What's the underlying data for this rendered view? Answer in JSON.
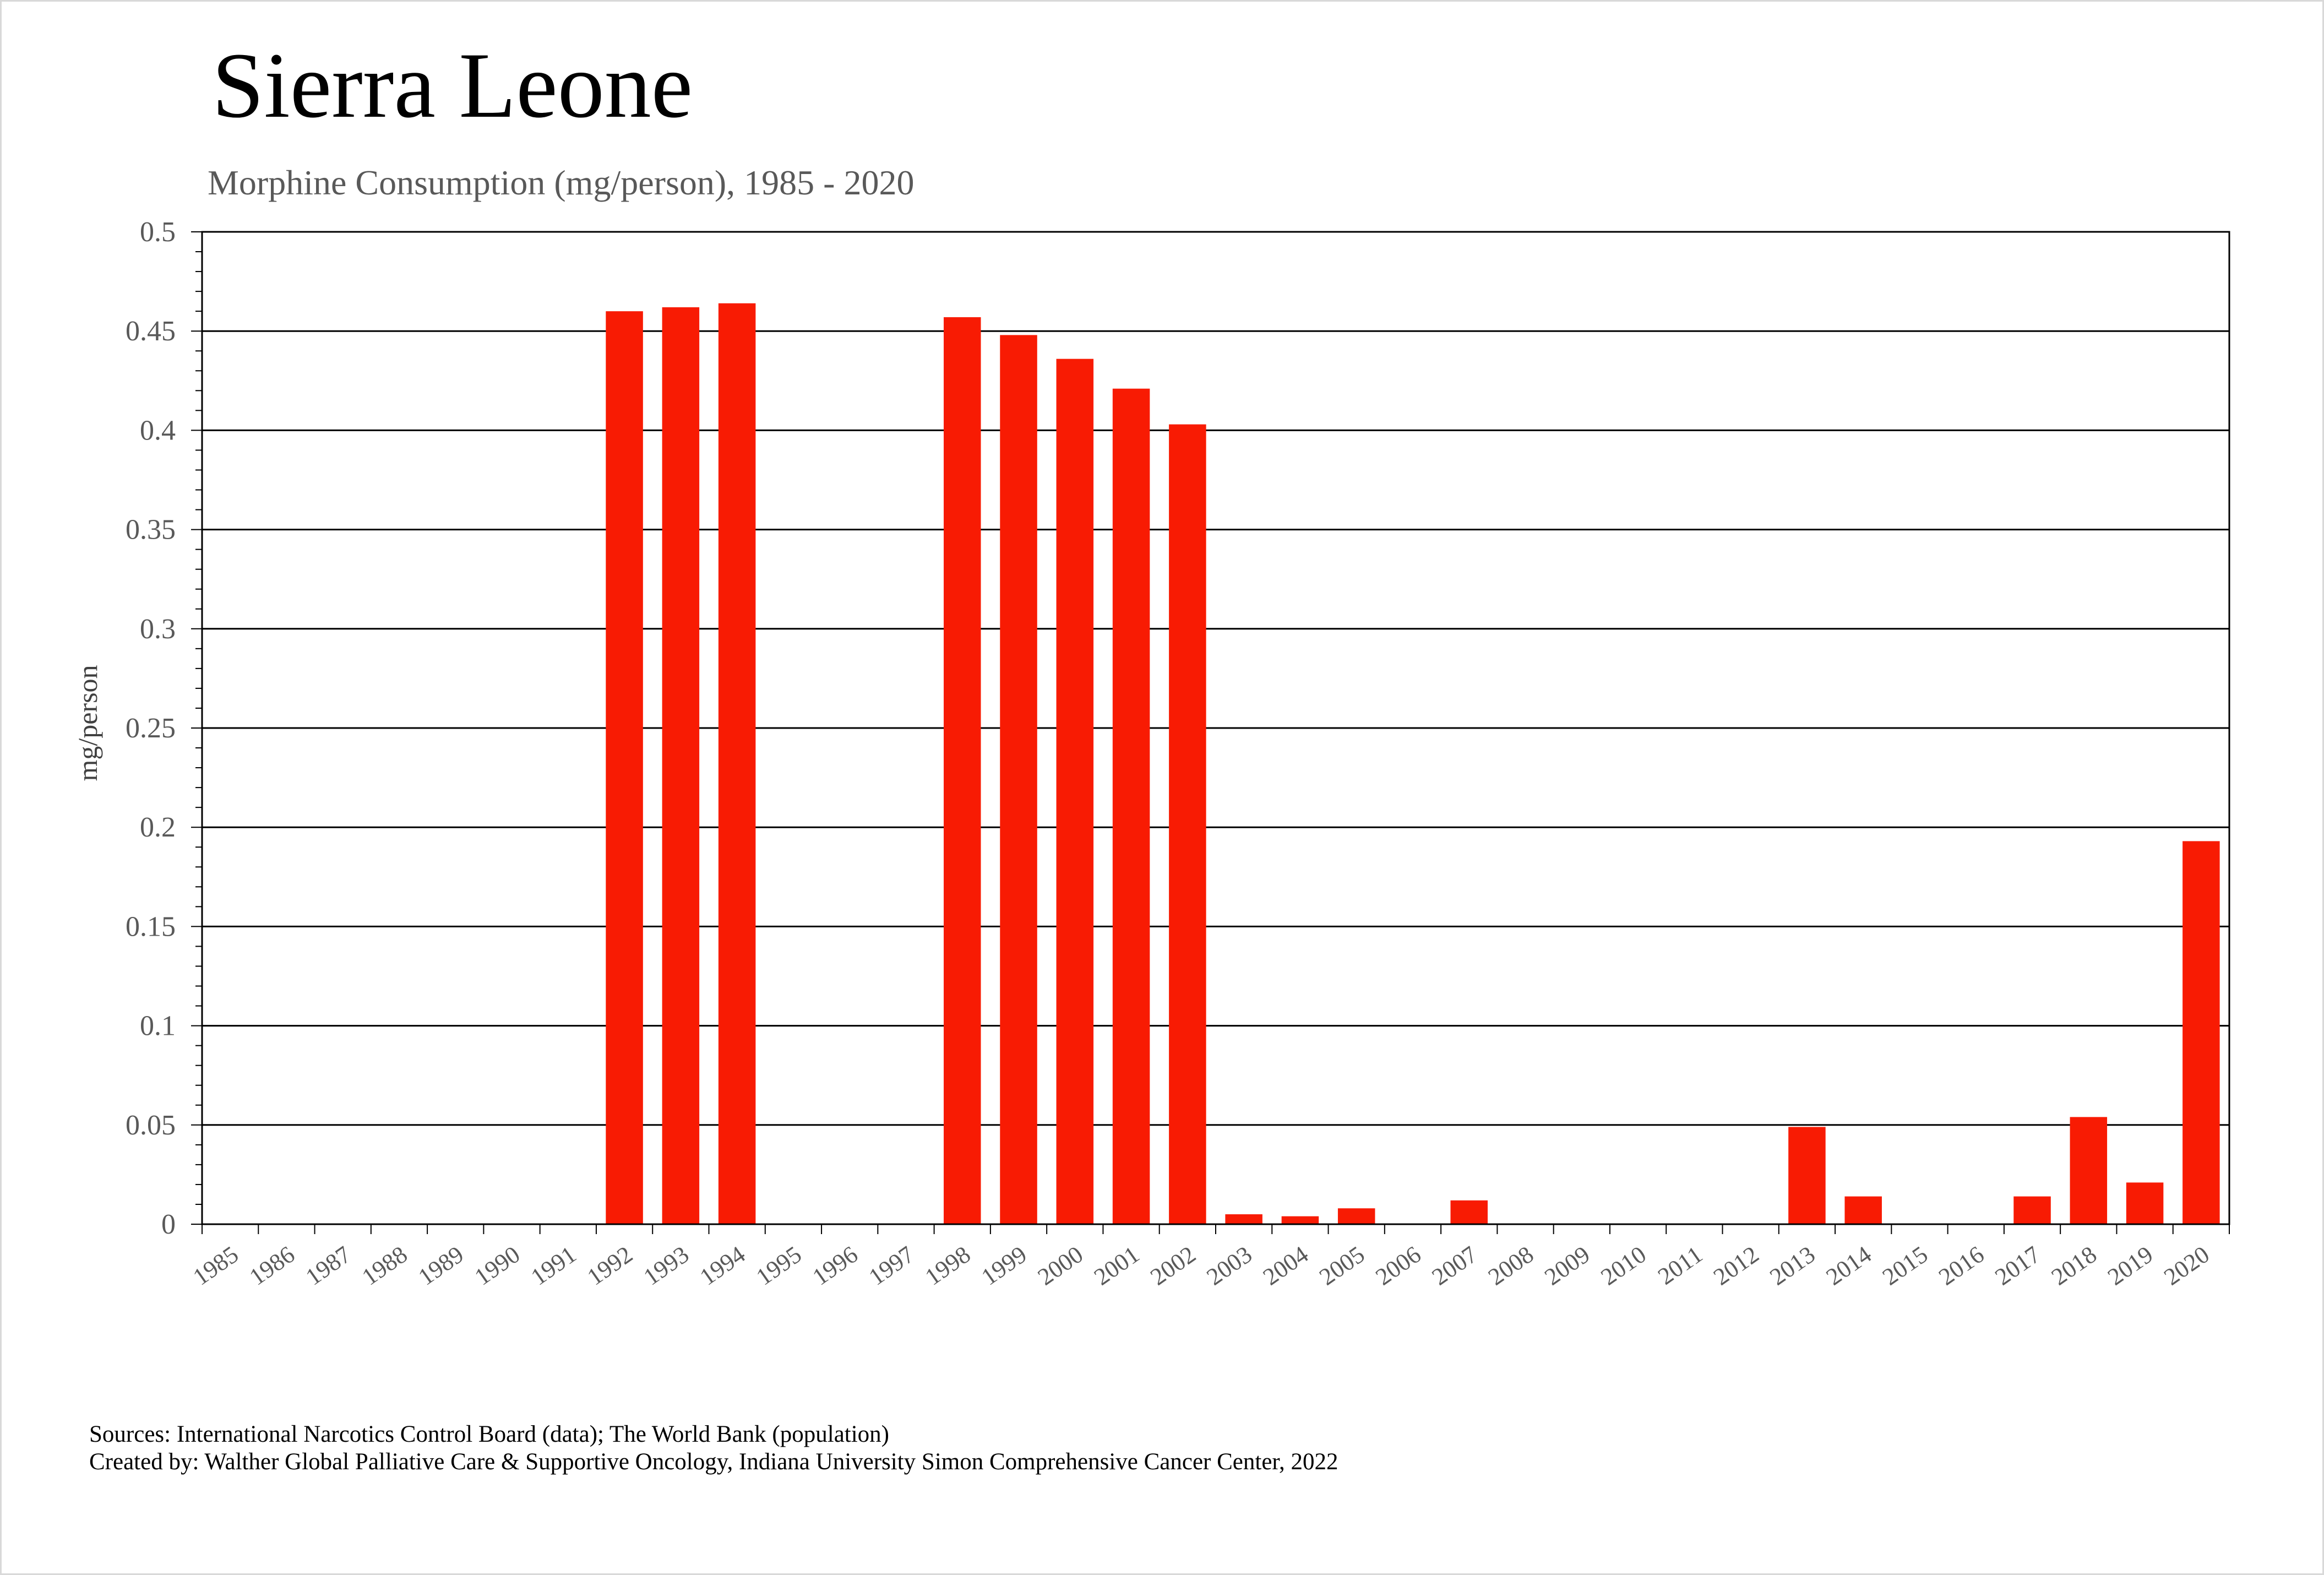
{
  "chart_data": {
    "type": "bar",
    "title": "Sierra Leone",
    "subtitle": "Morphine Consumption (mg/person), 1985 - 2020",
    "xlabel": "",
    "ylabel": "mg/person",
    "ylim": [
      0,
      0.5
    ],
    "yticks": [
      0,
      0.05,
      0.1,
      0.15,
      0.2,
      0.25,
      0.3,
      0.35,
      0.4,
      0.45,
      0.5
    ],
    "ytick_labels": [
      "0",
      "0.05",
      "0.1",
      "0.15",
      "0.2",
      "0.25",
      "0.3",
      "0.35",
      "0.4",
      "0.45",
      "0.5"
    ],
    "grid": true,
    "legend": "none",
    "bar_color": "#f81b03",
    "categories": [
      "1985",
      "1986",
      "1987",
      "1988",
      "1989",
      "1990",
      "1991",
      "1992",
      "1993",
      "1994",
      "1995",
      "1996",
      "1997",
      "1998",
      "1999",
      "2000",
      "2001",
      "2002",
      "2003",
      "2004",
      "2005",
      "2006",
      "2007",
      "2008",
      "2009",
      "2010",
      "2011",
      "2012",
      "2013",
      "2014",
      "2015",
      "2016",
      "2017",
      "2018",
      "2019",
      "2020"
    ],
    "values": [
      0,
      0,
      0,
      0,
      0,
      0,
      0,
      0.46,
      0.462,
      0.464,
      0,
      0,
      0,
      0.457,
      0.448,
      0.436,
      0.421,
      0.403,
      0.005,
      0.004,
      0.008,
      0,
      0.012,
      0,
      0,
      0,
      0,
      0,
      0.049,
      0.014,
      0,
      0,
      0.014,
      0.054,
      0.021,
      0.193
    ]
  },
  "footer": {
    "sources": "Sources: International Narcotics Control Board (data); The World Bank (population)",
    "credits": "Created by: Walther  Global Palliative Care & Supportive Oncology, Indiana University Simon Comprehensive Cancer Center, 2022"
  }
}
